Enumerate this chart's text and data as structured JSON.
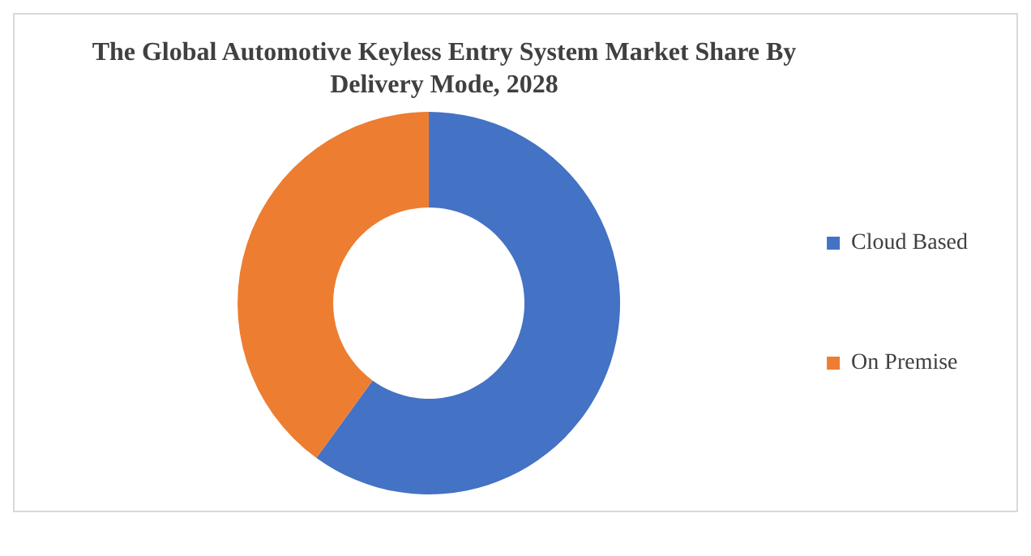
{
  "chart_data": {
    "type": "donut",
    "title": "The Global Automotive Keyless Entry System Market Share By Delivery Mode, 2028",
    "categories": [
      "Cloud Based",
      "On Premise"
    ],
    "values": [
      60,
      40
    ],
    "colors": [
      "#4472c4",
      "#ed7d31"
    ],
    "legend": "right"
  }
}
